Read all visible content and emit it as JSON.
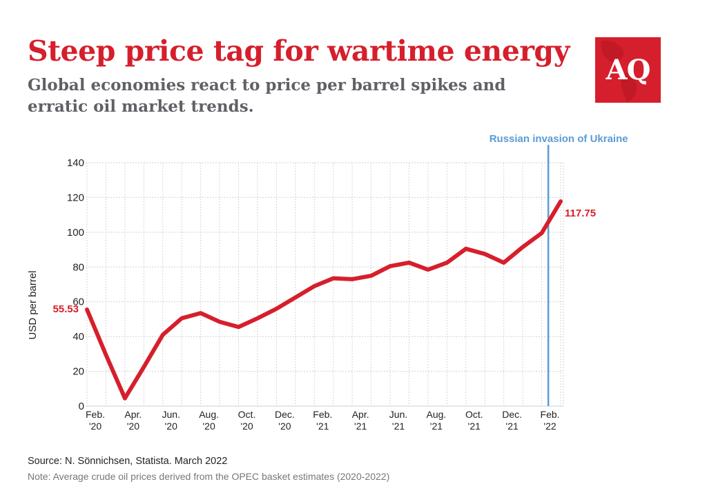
{
  "title": "Steep price tag for wartime energy",
  "subtitle": "Global economies react to price per barrel spikes and erratic oil market trends.",
  "logo": {
    "text": "AQ",
    "color": "#d61f2c"
  },
  "footer": {
    "source": "Source: N. Sönnichsen, Statista. March 2022",
    "note": "Note: Average crude oil prices derived from the OPEC basket estimates (2020-2022)"
  },
  "chart_data": {
    "type": "line",
    "title": "Steep price tag for wartime energy",
    "xlabel": "",
    "ylabel": "USD per barrel",
    "ylim": [
      0,
      140
    ],
    "y_ticks": [
      0,
      20,
      40,
      60,
      80,
      100,
      120,
      140
    ],
    "grid": true,
    "x_tick_labels": [
      {
        "month": "Feb.",
        "year": "'20",
        "index": 0
      },
      {
        "month": "Apr.",
        "year": "'20",
        "index": 2
      },
      {
        "month": "Jun.",
        "year": "'20",
        "index": 4
      },
      {
        "month": "Aug.",
        "year": "'20",
        "index": 6
      },
      {
        "month": "Oct.",
        "year": "'20",
        "index": 8
      },
      {
        "month": "Dec.",
        "year": "'20",
        "index": 10
      },
      {
        "month": "Feb.",
        "year": "'21",
        "index": 12
      },
      {
        "month": "Apr.",
        "year": "'21",
        "index": 14
      },
      {
        "month": "Jun.",
        "year": "'21",
        "index": 16
      },
      {
        "month": "Aug.",
        "year": "'21",
        "index": 18
      },
      {
        "month": "Oct.",
        "year": "'21",
        "index": 20
      },
      {
        "month": "Dec.",
        "year": "'21",
        "index": 22
      },
      {
        "month": "Feb.",
        "year": "'22",
        "index": 24
      }
    ],
    "categories": [
      "Feb. '20",
      "Mar. '20",
      "Apr. '20",
      "May '20",
      "Jun. '20",
      "Jul. '20",
      "Aug. '20",
      "Sep. '20",
      "Oct. '20",
      "Nov. '20",
      "Dec. '20",
      "Jan. '21",
      "Feb. '21",
      "Mar. '21",
      "Apr. '21",
      "May '21",
      "Jun. '21",
      "Jul. '21",
      "Aug. '21",
      "Sep. '21",
      "Oct. '21",
      "Nov. '21",
      "Dec. '21",
      "Jan. '22",
      "Feb. '22",
      "Mar. '22"
    ],
    "series": [
      {
        "color": "#d61f2c",
        "values": [
          55.53,
          29.5,
          4.5,
          22.5,
          41.0,
          50.5,
          53.5,
          48.5,
          45.5,
          50.5,
          56.0,
          62.5,
          69.0,
          73.5,
          73.0,
          75.0,
          80.5,
          82.5,
          78.5,
          82.5,
          90.5,
          87.5,
          82.5,
          91.5,
          99.5,
          117.75
        ]
      }
    ],
    "data_labels": [
      {
        "index": 0,
        "text": "55.53"
      },
      {
        "index": 25,
        "text": "117.75"
      }
    ],
    "annotation": {
      "text": "Russian invasion of Ukraine",
      "position": 24.35,
      "color": "#5b9bd5"
    }
  }
}
